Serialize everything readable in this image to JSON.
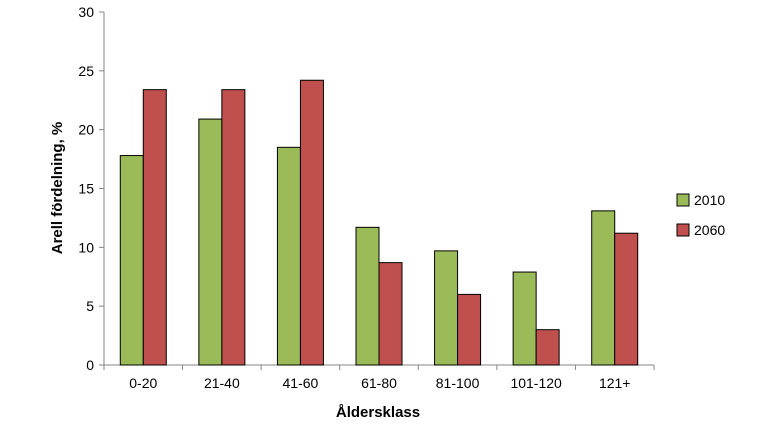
{
  "chart_data": {
    "type": "bar",
    "title": "",
    "xlabel": "Åldersklass",
    "ylabel": "Arell fördelning, %",
    "ylim": [
      0,
      30
    ],
    "yticks": [
      0,
      5,
      10,
      15,
      20,
      25,
      30
    ],
    "grid": false,
    "legend_position": "right",
    "categories": [
      "0-20",
      "21-40",
      "41-60",
      "61-80",
      "81-100",
      "101-120",
      "121+"
    ],
    "series": [
      {
        "name": "2010",
        "color": "#9bbb59",
        "values": [
          17.8,
          20.9,
          18.5,
          11.7,
          9.7,
          7.9,
          13.1
        ]
      },
      {
        "name": "2060",
        "color": "#c0504d",
        "values": [
          23.4,
          23.4,
          24.2,
          8.7,
          6.0,
          3.0,
          11.2
        ]
      }
    ]
  }
}
